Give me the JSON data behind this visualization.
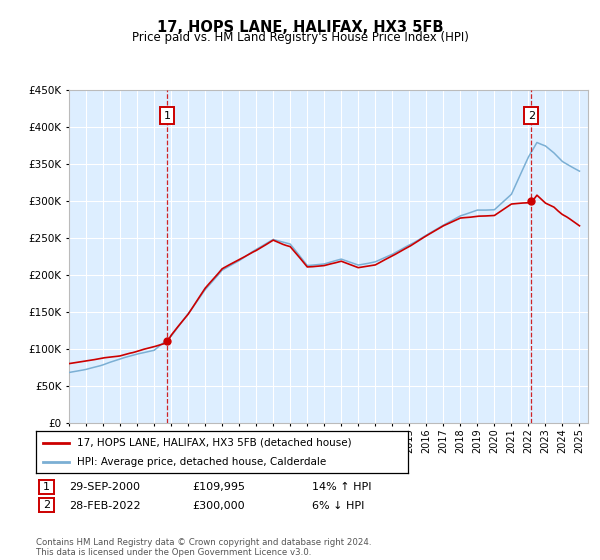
{
  "title": "17, HOPS LANE, HALIFAX, HX3 5FB",
  "subtitle": "Price paid vs. HM Land Registry's House Price Index (HPI)",
  "footer": "Contains HM Land Registry data © Crown copyright and database right 2024.\nThis data is licensed under the Open Government Licence v3.0.",
  "legend_line1": "17, HOPS LANE, HALIFAX, HX3 5FB (detached house)",
  "legend_line2": "HPI: Average price, detached house, Calderdale",
  "annotation1_date": "29-SEP-2000",
  "annotation1_price": "£109,995",
  "annotation1_hpi": "14% ↑ HPI",
  "annotation2_date": "28-FEB-2022",
  "annotation2_price": "£300,000",
  "annotation2_hpi": "6% ↓ HPI",
  "red_color": "#cc0000",
  "blue_color": "#7bafd4",
  "plot_bg": "#ddeeff",
  "grid_color": "#ffffff",
  "ylim": [
    0,
    450000
  ],
  "yticks": [
    0,
    50000,
    100000,
    150000,
    200000,
    250000,
    300000,
    350000,
    400000,
    450000
  ],
  "xlim_start": 1995,
  "xlim_end": 2025.5,
  "ann1_x": 2000.75,
  "ann2_x": 2022.17,
  "ann1_sale_price": 109995,
  "ann2_sale_price": 300000,
  "hpi_keypoints_x": [
    1995,
    1996,
    1997,
    1998,
    1999,
    2000,
    2001,
    2002,
    2003,
    2004,
    2005,
    2006,
    2007,
    2008,
    2009,
    2010,
    2011,
    2012,
    2013,
    2014,
    2015,
    2016,
    2017,
    2018,
    2019,
    2020,
    2021,
    2022,
    2022.5,
    2023,
    2023.5,
    2024,
    2025
  ],
  "hpi_keypoints_y": [
    68000,
    72000,
    78000,
    85000,
    92000,
    96000,
    115000,
    145000,
    178000,
    205000,
    218000,
    232000,
    245000,
    238000,
    210000,
    212000,
    218000,
    210000,
    215000,
    225000,
    238000,
    252000,
    265000,
    278000,
    285000,
    285000,
    305000,
    355000,
    375000,
    370000,
    360000,
    348000,
    335000
  ],
  "red_keypoints_x": [
    1995,
    1996,
    1997,
    1998,
    1999,
    2000,
    2000.75,
    2001,
    2002,
    2003,
    2004,
    2005,
    2006,
    2007,
    2008,
    2009,
    2010,
    2011,
    2012,
    2013,
    2014,
    2015,
    2016,
    2017,
    2018,
    2019,
    2020,
    2021,
    2022.17,
    2022.5,
    2023,
    2023.5,
    2024,
    2025
  ],
  "red_keypoints_y": [
    80000,
    84000,
    88000,
    92000,
    98000,
    104000,
    109995,
    120000,
    148000,
    182000,
    208000,
    220000,
    232000,
    248000,
    240000,
    212000,
    214000,
    220000,
    212000,
    216000,
    228000,
    240000,
    255000,
    268000,
    278000,
    282000,
    282000,
    298000,
    300000,
    310000,
    300000,
    295000,
    285000,
    270000
  ]
}
